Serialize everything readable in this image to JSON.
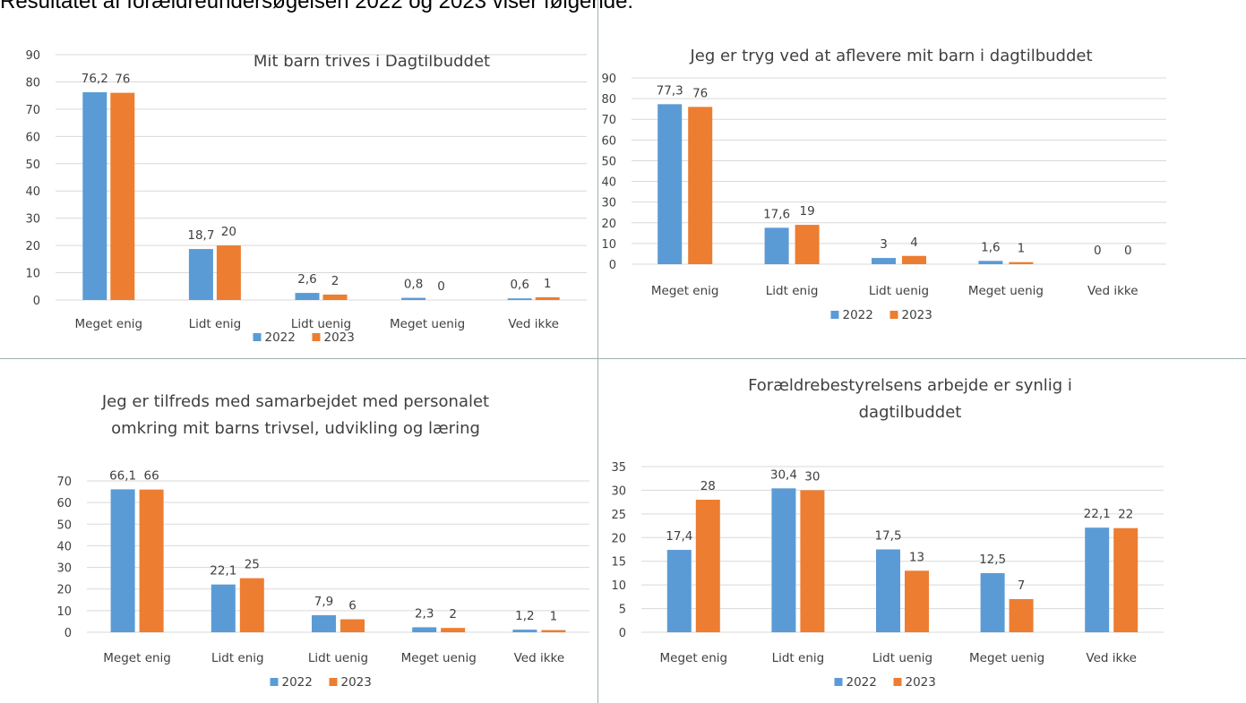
{
  "intro_text": "Resultatet af forældreundersøgelsen 2022 og 2023 viser følgende:",
  "colors": {
    "series_2022": "#5b9bd5",
    "series_2023": "#ed7d31",
    "grid": "#d9d9d9",
    "divider": "#9bb3a8"
  },
  "chart_data": [
    {
      "type": "bar",
      "title_lines": [
        "Mit barn trives i Dagtilbuddet"
      ],
      "categories": [
        "Meget enig",
        "Lidt enig",
        "Lidt uenig",
        "Meget uenig",
        "Ved ikke"
      ],
      "series": [
        {
          "name": "2022",
          "values": [
            76.2,
            18.7,
            2.6,
            0.8,
            0.6
          ],
          "labels": [
            "76,2",
            "18,7",
            "2,6",
            "0,8",
            "0,6"
          ]
        },
        {
          "name": "2023",
          "values": [
            76,
            20,
            2,
            0,
            1
          ],
          "labels": [
            "76",
            "20",
            "2",
            "0",
            "1"
          ]
        }
      ],
      "ylim": [
        0,
        90
      ],
      "yticks": [
        0,
        10,
        20,
        30,
        40,
        50,
        60,
        70,
        80,
        90
      ],
      "grid": true,
      "legend": "bottom"
    },
    {
      "type": "bar",
      "title_lines": [
        "Jeg er tryg ved at aflevere mit barn i dagtilbuddet"
      ],
      "categories": [
        "Meget enig",
        "Lidt enig",
        "Lidt uenig",
        "Meget uenig",
        "Ved ikke"
      ],
      "series": [
        {
          "name": "2022",
          "values": [
            77.3,
            17.6,
            3,
            1.6,
            0
          ],
          "labels": [
            "77,3",
            "17,6",
            "3",
            "1,6",
            "0"
          ]
        },
        {
          "name": "2023",
          "values": [
            76,
            19,
            4,
            1,
            0
          ],
          "labels": [
            "76",
            "19",
            "4",
            "1",
            "0"
          ]
        }
      ],
      "ylim": [
        0,
        90
      ],
      "yticks": [
        0,
        10,
        20,
        30,
        40,
        50,
        60,
        70,
        80,
        90
      ],
      "grid": true,
      "legend": "bottom"
    },
    {
      "type": "bar",
      "title_lines": [
        "Jeg er tilfreds med samarbejdet med personalet",
        "omkring mit barns trivsel, udvikling og læring"
      ],
      "categories": [
        "Meget enig",
        "Lidt enig",
        "Lidt uenig",
        "Meget uenig",
        "Ved ikke"
      ],
      "series": [
        {
          "name": "2022",
          "values": [
            66.1,
            22.1,
            7.9,
            2.3,
            1.2
          ],
          "labels": [
            "66,1",
            "22,1",
            "7,9",
            "2,3",
            "1,2"
          ]
        },
        {
          "name": "2023",
          "values": [
            66,
            25,
            6,
            2,
            1
          ],
          "labels": [
            "66",
            "25",
            "6",
            "2",
            "1"
          ]
        }
      ],
      "ylim": [
        0,
        70
      ],
      "yticks": [
        0,
        10,
        20,
        30,
        40,
        50,
        60,
        70
      ],
      "grid": true,
      "legend": "bottom"
    },
    {
      "type": "bar",
      "title_lines": [
        "Forældrebestyrelsens arbejde er synlig i",
        "dagtilbuddet"
      ],
      "categories": [
        "Meget enig",
        "Lidt enig",
        "Lidt uenig",
        "Meget uenig",
        "Ved ikke"
      ],
      "series": [
        {
          "name": "2022",
          "values": [
            17.4,
            30.4,
            17.5,
            12.5,
            22.1
          ],
          "labels": [
            "17,4",
            "30,4",
            "17,5",
            "12,5",
            "22,1"
          ]
        },
        {
          "name": "2023",
          "values": [
            28,
            30,
            13,
            7,
            22
          ],
          "labels": [
            "28",
            "30",
            "13",
            "7",
            "22"
          ]
        }
      ],
      "ylim": [
        0,
        35
      ],
      "yticks": [
        0,
        5,
        10,
        15,
        20,
        25,
        30,
        35
      ],
      "grid": true,
      "legend": "bottom"
    }
  ]
}
